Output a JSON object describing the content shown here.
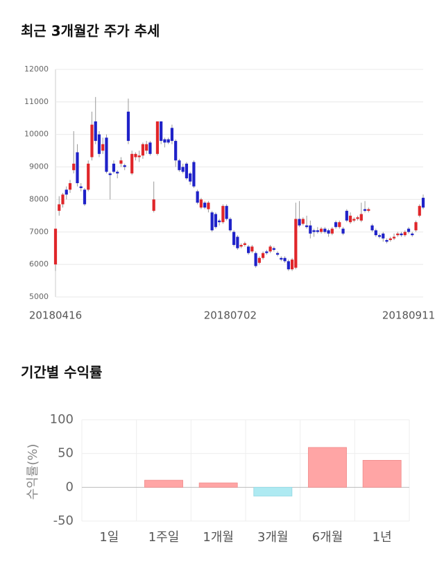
{
  "chart_data": [
    {
      "type": "candlestick",
      "title": "최근 3개월간 주가 추세",
      "categories": [
        "20180416",
        null,
        null,
        null,
        null,
        null,
        null,
        null,
        null,
        null,
        null,
        null,
        null,
        null,
        null,
        null,
        null,
        null,
        null,
        null,
        null,
        null,
        null,
        null,
        null,
        null,
        null,
        null,
        null,
        null,
        null,
        null,
        null,
        null,
        null,
        null,
        null,
        null,
        null,
        null,
        null,
        null,
        null,
        null,
        null,
        null,
        null,
        null,
        "20180702",
        null,
        null,
        null,
        null,
        null,
        null,
        null,
        null,
        null,
        null,
        null,
        null,
        null,
        null,
        null,
        null,
        null,
        null,
        null,
        null,
        null,
        null,
        null,
        null,
        null,
        null,
        null,
        null,
        null,
        null,
        null,
        null,
        null,
        null,
        null,
        null,
        null,
        null,
        null,
        null,
        null,
        null,
        null,
        null,
        null,
        null,
        null,
        null,
        "20180911",
        null,
        null,
        null,
        null
      ],
      "open": [
        6000,
        7650,
        7850,
        8300,
        8300,
        8900,
        9450,
        8400,
        8300,
        8300,
        9300,
        10400,
        10000,
        9500,
        9900,
        8800,
        9100,
        8850,
        9100,
        9050,
        10700,
        8800,
        9300,
        9300,
        9350,
        9500,
        9750,
        7650,
        9400,
        10400,
        9850,
        9850,
        10200,
        9800,
        9200,
        9000,
        9100,
        8800,
        9150,
        8250,
        7750,
        7900,
        7700,
        7600,
        7550,
        7350,
        7300,
        7800,
        7400,
        7000,
        6850,
        6550,
        6600,
        6550,
        6400,
        6350,
        6050,
        6200,
        6400,
        6400,
        6500,
        6350,
        6200,
        6200,
        6100,
        5850,
        5900,
        7400,
        7250,
        7200,
        7200,
        7050,
        7050,
        7000,
        7100,
        7050,
        6950,
        7300,
        7150,
        7100,
        7650,
        7300,
        7350,
        7400,
        7350,
        7700,
        7650,
        7200,
        7050,
        6900,
        6950,
        6750,
        6750,
        6800,
        6900,
        6950,
        6900,
        7100,
        6950,
        7050,
        7500,
        8050
      ],
      "high": [
        7100,
        8100,
        8200,
        8400,
        8600,
        10100,
        9700,
        8500,
        8350,
        9200,
        10700,
        11150,
        10100,
        9900,
        10000,
        8850,
        9200,
        8900,
        9300,
        9100,
        11100,
        9500,
        9450,
        9500,
        9750,
        9800,
        9800,
        8550,
        10400,
        10400,
        9900,
        9900,
        10300,
        9850,
        9250,
        9100,
        9150,
        8850,
        9200,
        8300,
        8050,
        7950,
        7950,
        7650,
        7600,
        7400,
        7850,
        7850,
        7450,
        7050,
        6900,
        6650,
        6700,
        6600,
        6600,
        6400,
        6250,
        6400,
        6450,
        6600,
        6550,
        6400,
        6250,
        6250,
        6150,
        6200,
        7900,
        7950,
        7450,
        7500,
        7350,
        7100,
        7150,
        7150,
        7150,
        7100,
        7150,
        7350,
        7350,
        7150,
        7700,
        7600,
        7450,
        7500,
        7900,
        7950,
        7750,
        7250,
        7100,
        6950,
        7000,
        6800,
        6850,
        6950,
        7000,
        7000,
        7050,
        7150,
        7000,
        7350,
        7850,
        8150
      ],
      "low": [
        5800,
        7500,
        7750,
        8000,
        8200,
        8800,
        8400,
        8250,
        7800,
        8250,
        9200,
        9700,
        9300,
        9400,
        8800,
        8000,
        8800,
        8650,
        9000,
        8900,
        9700,
        8750,
        9200,
        9150,
        9250,
        9400,
        9350,
        7600,
        9350,
        9700,
        9600,
        9700,
        9700,
        9000,
        8850,
        8800,
        8600,
        8450,
        8350,
        7850,
        7700,
        7700,
        7600,
        7000,
        7100,
        7200,
        7250,
        7350,
        7000,
        6550,
        6450,
        6500,
        6550,
        6300,
        6350,
        5900,
        6000,
        6150,
        6300,
        6350,
        6400,
        6250,
        6100,
        6050,
        5800,
        5800,
        5850,
        7150,
        7200,
        7100,
        6800,
        6850,
        6950,
        6950,
        6950,
        6850,
        6900,
        7100,
        7100,
        6900,
        7300,
        7250,
        7300,
        7350,
        7300,
        7600,
        7600,
        7000,
        6850,
        6800,
        6700,
        6650,
        6700,
        6750,
        6850,
        6850,
        6850,
        6950,
        6850,
        7000,
        7450,
        7700
      ],
      "close": [
        7100,
        7850,
        8150,
        8150,
        8500,
        9100,
        8500,
        8350,
        7850,
        9100,
        10300,
        9800,
        9400,
        9700,
        8850,
        8750,
        8850,
        8800,
        9200,
        9000,
        9800,
        9400,
        9400,
        9350,
        9700,
        9700,
        9400,
        8000,
        10400,
        9800,
        9750,
        9750,
        9800,
        9200,
        8900,
        8850,
        8650,
        8550,
        8400,
        7900,
        8000,
        7750,
        7900,
        7050,
        7150,
        7300,
        7800,
        7400,
        7050,
        6600,
        6500,
        6600,
        6650,
        6350,
        6550,
        5950,
        6200,
        6350,
        6350,
        6550,
        6450,
        6300,
        6150,
        6100,
        5850,
        6150,
        7400,
        7200,
        7400,
        7150,
        6950,
        7000,
        7000,
        7100,
        7000,
        6950,
        7100,
        7150,
        7300,
        6950,
        7350,
        7500,
        7400,
        7450,
        7550,
        7650,
        7700,
        7050,
        6900,
        6850,
        6800,
        6700,
        6800,
        6850,
        6950,
        6900,
        7000,
        7000,
        6900,
        7300,
        7800,
        7750
      ],
      "up_color": "#e0262a",
      "down_color": "#1f22c8",
      "ylim": [
        5000,
        12000
      ],
      "yticks": [
        5000,
        6000,
        7000,
        8000,
        9000,
        10000,
        11000,
        12000
      ],
      "grid": true
    },
    {
      "type": "bar",
      "title": "기간별 수익률",
      "y_label": "수익률(%)",
      "categories": [
        "1일",
        "1주일",
        "1개월",
        "3개월",
        "6개월",
        "1년"
      ],
      "values": [
        0,
        10.5,
        6.5,
        -13,
        59,
        40
      ],
      "positive_color": "#ffa5a5",
      "negative_color": "#aeeaf2",
      "ylim": [
        -50,
        100
      ],
      "yticks": [
        -50,
        0,
        50,
        100
      ],
      "grid": true
    }
  ]
}
